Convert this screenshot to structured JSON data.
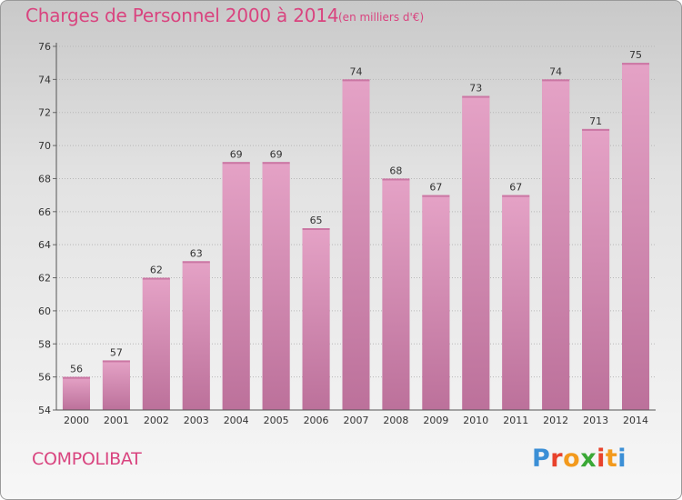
{
  "header": {
    "title": "Charges de Personnel 2000 à 2014",
    "subtitle": "(en milliers d'€)"
  },
  "footer": {
    "commune": "COMPOLIBAT",
    "brand": "Proxiti",
    "brand_colors": [
      "#3b8fd6",
      "#e8422c",
      "#f39a1d",
      "#3aa836",
      "#e8422c",
      "#f39a1d",
      "#3b8fd6"
    ]
  },
  "chart_data": {
    "type": "bar",
    "categories": [
      "2000",
      "2001",
      "2002",
      "2003",
      "2004",
      "2005",
      "2006",
      "2007",
      "2008",
      "2009",
      "2010",
      "2011",
      "2012",
      "2013",
      "2014"
    ],
    "values": [
      56,
      57,
      62,
      63,
      69,
      69,
      65,
      74,
      68,
      67,
      73,
      67,
      74,
      71,
      75
    ],
    "ylim": [
      54,
      76
    ],
    "yticks": [
      54,
      56,
      58,
      60,
      62,
      64,
      66,
      68,
      70,
      72,
      74,
      76
    ],
    "grid": true,
    "bar_color": "#d27ba9"
  }
}
